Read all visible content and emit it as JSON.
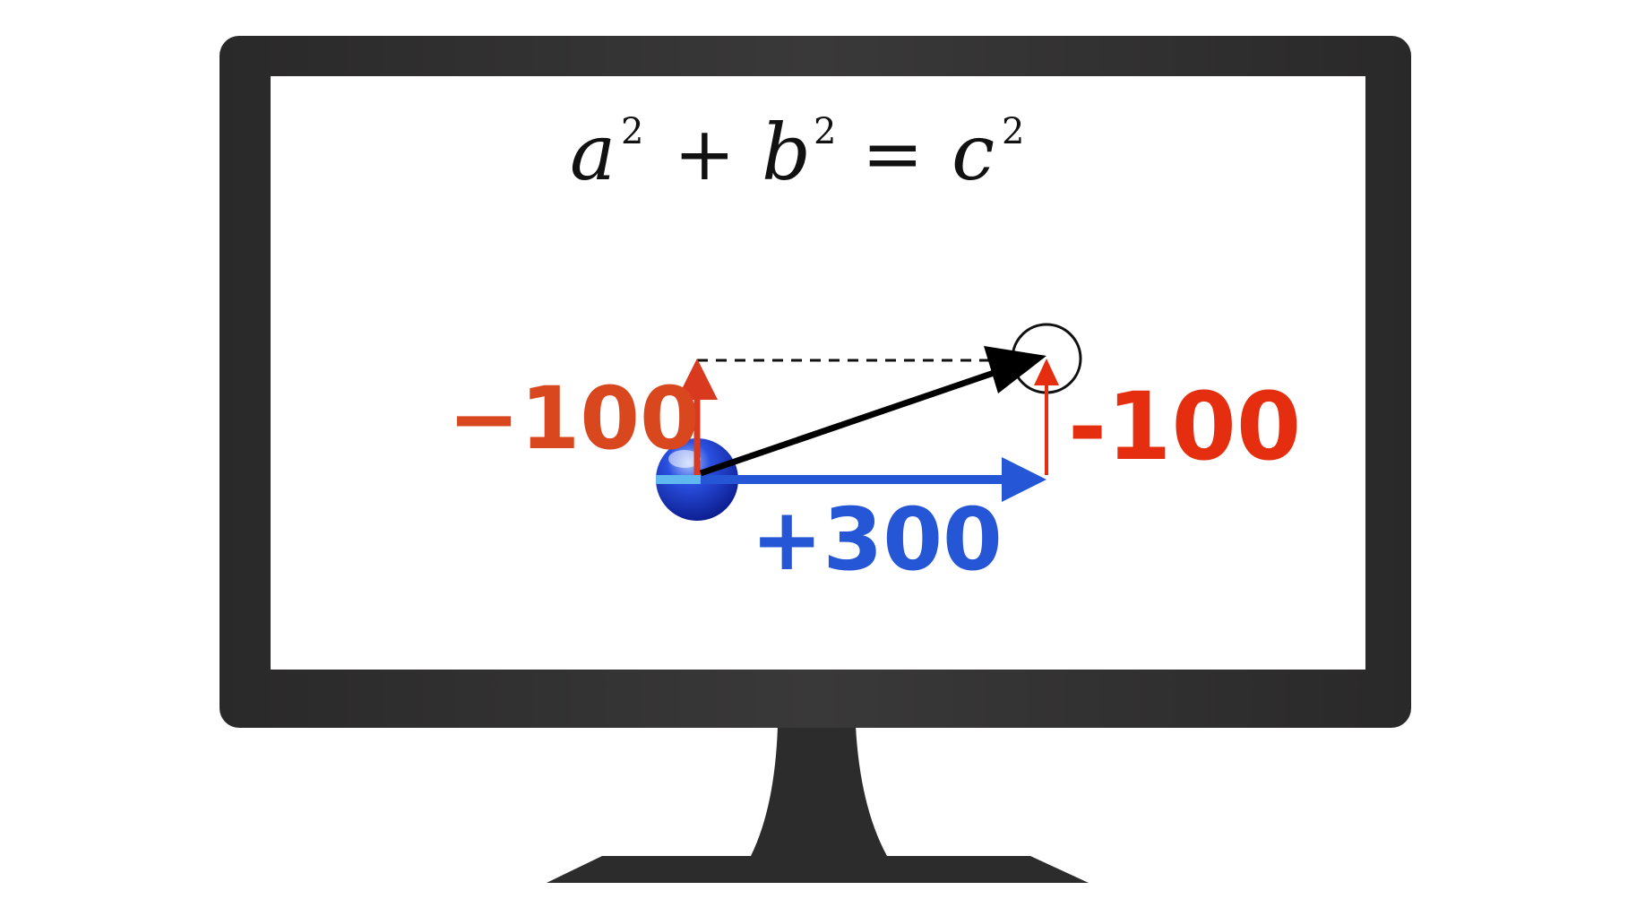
{
  "equation": {
    "a": "a",
    "b": "b",
    "c": "c",
    "sup_a": "2",
    "sup_b": "2",
    "sup_c": "2",
    "plus": "+",
    "equals": "="
  },
  "labels": {
    "start_dy": "−100",
    "end_dy": "-100",
    "dx": "+300"
  },
  "colors": {
    "frame": "#2b2a2a",
    "screen": "#ffffff",
    "red_arrow": "#d93a1f",
    "red_text_left": "#d9471f",
    "red_text_right": "#e52e0f",
    "blue": "#2456d6",
    "light_blue": "#5fb8f0",
    "black": "#000000"
  }
}
